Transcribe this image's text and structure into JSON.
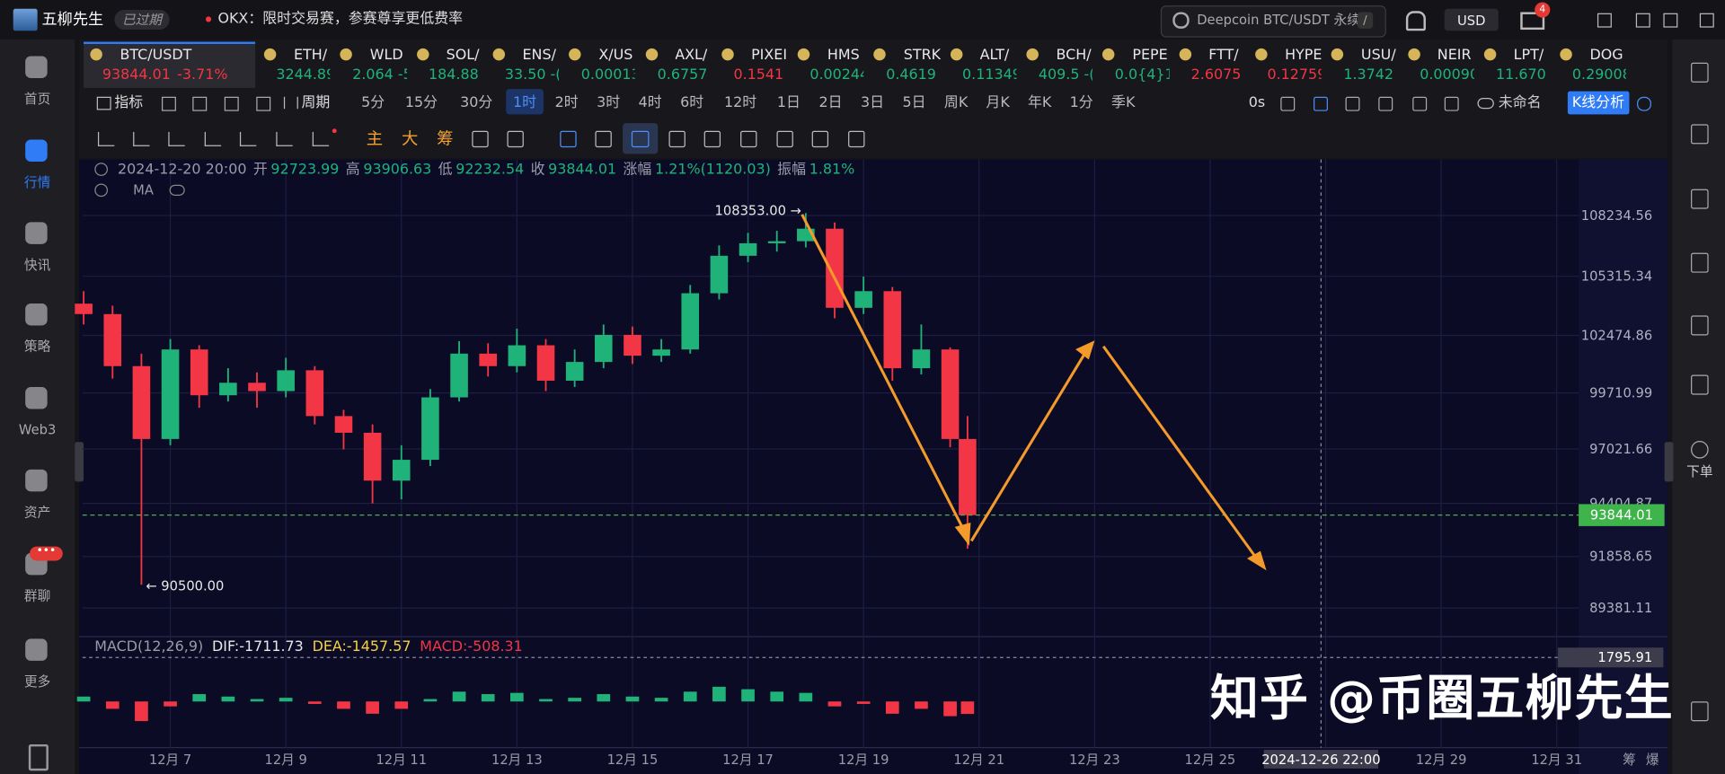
{
  "app": {
    "name": "五柳先生",
    "status": "已过期",
    "notice": "OKX：限时交易赛，参赛尊享更低费率",
    "search": "Deepcoin BTC/USDT 永续",
    "search_key": "/",
    "currency": "USD",
    "mail_badge": "4"
  },
  "sidebar": [
    {
      "label": "首页"
    },
    {
      "label": "行情",
      "active": true
    },
    {
      "label": "快讯"
    },
    {
      "label": "策略"
    },
    {
      "label": "Web3"
    },
    {
      "label": "资产"
    },
    {
      "label": "群聊"
    },
    {
      "label": "更多"
    }
  ],
  "sidebar_badge": "•••",
  "right_sidebar": {
    "order": "下单"
  },
  "tickers": [
    {
      "name": "BTC/USDT",
      "price": "93844.01",
      "change": "-3.71%",
      "color": "#f23645",
      "active": true
    },
    {
      "name": "ETH/",
      "price": "3244.89",
      "color": "#1fb37a"
    },
    {
      "name": "WLD",
      "price": "2.064 -5",
      "color": "#1fb37a"
    },
    {
      "name": "SOL/",
      "price": "184.88",
      "color": "#1fb37a"
    },
    {
      "name": "ENS/",
      "price": "33.50 -(",
      "color": "#1fb37a"
    },
    {
      "name": "X/US",
      "price": "0.00013",
      "color": "#1fb37a"
    },
    {
      "name": "AXL/",
      "price": "0.6757",
      "color": "#1fb37a"
    },
    {
      "name": "PIXEI",
      "price": "0.1541",
      "color": "#f23645"
    },
    {
      "name": "HMS",
      "price": "0.00244",
      "color": "#1fb37a"
    },
    {
      "name": "STRK",
      "price": "0.4619",
      "color": "#1fb37a"
    },
    {
      "name": "ALT/",
      "price": "0.11349",
      "color": "#1fb37a"
    },
    {
      "name": "BCH/",
      "price": "409.5 -(",
      "color": "#1fb37a"
    },
    {
      "name": "PEPE",
      "price": "0.0{4}15",
      "color": "#1fb37a"
    },
    {
      "name": "FTT/",
      "price": "2.6075",
      "color": "#f23645"
    },
    {
      "name": "HYPE",
      "price": "0.12759",
      "color": "#f23645"
    },
    {
      "name": "USU/",
      "price": "1.3742",
      "color": "#1fb37a"
    },
    {
      "name": "NEIR",
      "price": "0.00090",
      "color": "#1fb37a"
    },
    {
      "name": "LPT/",
      "price": "11.670",
      "color": "#1fb37a"
    },
    {
      "name": "DOG",
      "price": "0.29008",
      "color": "#1fb37a"
    }
  ],
  "toolbar": {
    "indicators": "指标",
    "period": "周期",
    "periods": [
      {
        "label": "5分"
      },
      {
        "label": "15分"
      },
      {
        "label": "30分"
      },
      {
        "label": "1时",
        "active": true
      },
      {
        "label": "2时"
      },
      {
        "label": "3时"
      },
      {
        "label": "4时"
      },
      {
        "label": "6时"
      },
      {
        "label": "12时"
      },
      {
        "label": "1日"
      },
      {
        "label": "2日"
      },
      {
        "label": "3日"
      },
      {
        "label": "5日"
      },
      {
        "label": "周K"
      },
      {
        "label": "月K"
      },
      {
        "label": "年K"
      },
      {
        "label": "1分"
      },
      {
        "label": "季K"
      }
    ],
    "timer": "0s",
    "layout": "未命名",
    "analysis": "K线分析"
  },
  "draw_tools": [
    "主",
    "大",
    "筹"
  ],
  "chart_data": {
    "type": "candlestick",
    "info": {
      "datetime": "2024-12-20 20:00",
      "fields": [
        {
          "label": "开",
          "value": "92723.99"
        },
        {
          "label": "高",
          "value": "93906.63"
        },
        {
          "label": "低",
          "value": "92232.54"
        },
        {
          "label": "收",
          "value": "93844.01"
        },
        {
          "label": "涨幅",
          "value": "1.21%(1120.03)"
        },
        {
          "label": "振幅",
          "value": "1.81%"
        }
      ]
    },
    "ma_label": "MA",
    "x": [
      5.5,
      6,
      6.5,
      7,
      7.5,
      8,
      8.5,
      9,
      9.5,
      10,
      10.5,
      11,
      11.5,
      12,
      12.5,
      13,
      13.5,
      14,
      14.5,
      15,
      15.5,
      16,
      16.5,
      17,
      17.5,
      18,
      18.5,
      19,
      19.5,
      20,
      20.5,
      20.8
    ],
    "open": [
      104000,
      103500,
      101000,
      97500,
      101800,
      99600,
      100200,
      99800,
      100800,
      98600,
      97800,
      95500,
      96500,
      99500,
      101600,
      101000,
      102000,
      100300,
      101200,
      102500,
      101500,
      101800,
      104500,
      106300,
      106900,
      107000,
      107600,
      103800,
      104600,
      100900,
      101800,
      97500
    ],
    "high": [
      104600,
      103900,
      101600,
      102300,
      102000,
      100900,
      100700,
      101400,
      101000,
      98900,
      98200,
      97200,
      99900,
      102200,
      102100,
      102800,
      102300,
      101800,
      103000,
      102900,
      102300,
      104900,
      106800,
      107400,
      107500,
      108353,
      107900,
      105300,
      104800,
      103000,
      101900,
      98600
    ],
    "low": [
      103000,
      100400,
      90500,
      97200,
      99000,
      99300,
      99000,
      99500,
      98200,
      97000,
      94400,
      94600,
      96200,
      99300,
      100500,
      100700,
      99800,
      100000,
      100900,
      101100,
      101200,
      101600,
      104200,
      106000,
      106500,
      106700,
      103300,
      103500,
      100300,
      100600,
      97100,
      92232.54
    ],
    "close": [
      103500,
      101000,
      97500,
      101800,
      99600,
      100200,
      99800,
      100800,
      98600,
      97800,
      95500,
      96500,
      99500,
      101600,
      101000,
      102000,
      100300,
      101200,
      102500,
      101500,
      101800,
      104500,
      106300,
      106900,
      107000,
      107600,
      103800,
      104600,
      100900,
      101800,
      97500,
      93844.01
    ],
    "up_color": "#1fb37a",
    "down_color": "#f23645",
    "max_label": "108353.00 →",
    "min_label": "← 90500.00",
    "last_price": 93844.01,
    "xlim": [
      5.48,
      31.38
    ],
    "xticks": [
      {
        "value": 7,
        "label": "12月 7"
      },
      {
        "value": 9,
        "label": "12月 9"
      },
      {
        "value": 11,
        "label": "12月 11"
      },
      {
        "value": 13,
        "label": "12月 13"
      },
      {
        "value": 15,
        "label": "12月 15"
      },
      {
        "value": 17,
        "label": "12月 17"
      },
      {
        "value": 19,
        "label": "12月 19"
      },
      {
        "value": 21,
        "label": "12月 21"
      },
      {
        "value": 23,
        "label": "12月 23"
      },
      {
        "value": 25,
        "label": "12月 25"
      },
      {
        "value": 27,
        "label": "12月 27"
      },
      {
        "value": 29,
        "label": "12月 29"
      },
      {
        "value": 31,
        "label": "12月 31"
      }
    ],
    "ylim": [
      88061,
      110928
    ],
    "yticks": [
      108234.56,
      105315.34,
      102474.86,
      99710.99,
      97021.66,
      94404.87,
      91858.65,
      89381.11
    ],
    "grid": true,
    "crosshair": {
      "label": "2024-12-26 22:00",
      "x": 26.92
    },
    "macd": {
      "label": "MACD(12,26,9)",
      "dif": "DIF:-1711.73",
      "dea": "DEA:-1457.57",
      "macd": "MACD:-508.31",
      "values": [
        200,
        -300,
        -800,
        -200,
        300,
        200,
        100,
        150,
        -100,
        -300,
        -500,
        -300,
        100,
        400,
        300,
        350,
        100,
        150,
        300,
        200,
        150,
        400,
        600,
        500,
        400,
        350,
        -200,
        -100,
        -500,
        -300,
        -600,
        -508.31
      ],
      "ylim": [
        -1795.91,
        1795.91
      ],
      "yticks": [
        1795.91
      ]
    }
  },
  "bottom_right": [
    "筹",
    "爆"
  ],
  "watermark": "知乎 @币圈五柳先生"
}
